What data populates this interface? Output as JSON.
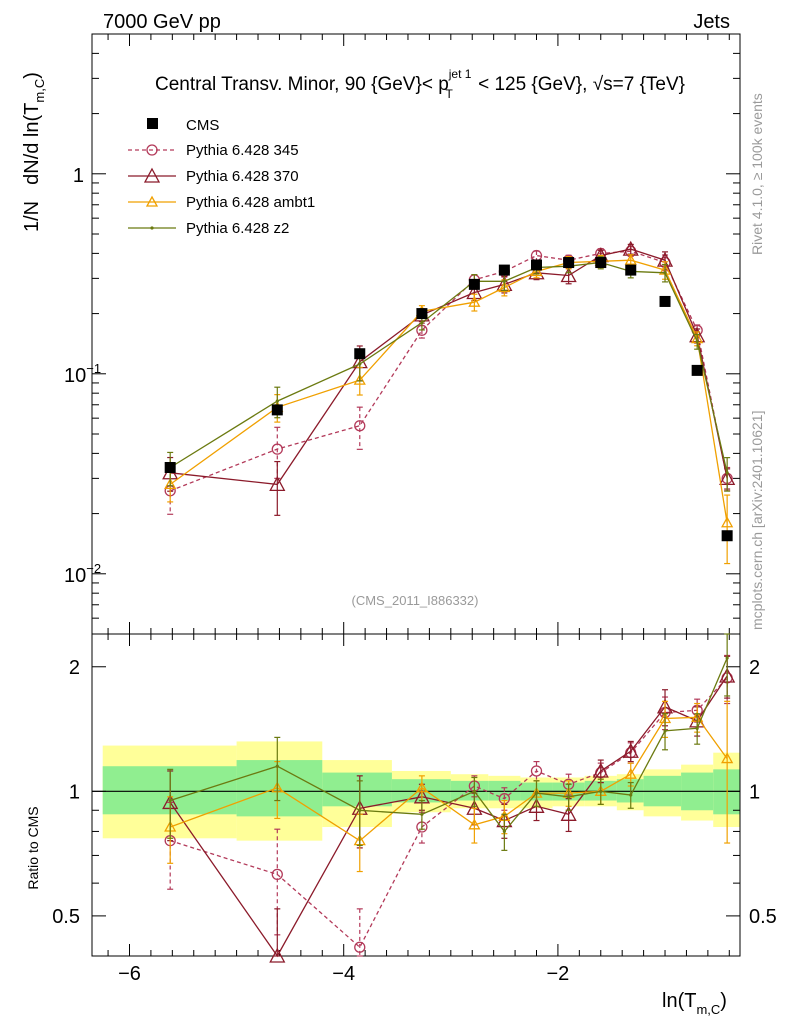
{
  "header": {
    "left": "7000 GeV pp",
    "right": "Jets",
    "title_main": "Central Transv. Minor, 90 {GeV}< p",
    "title_sup": "jet 1",
    "title_sub": "T",
    "title_rest": " < 125 {GeV}, √s=7 {TeV}"
  },
  "side_labels": {
    "rivet": "Rivet 4.1.0, ≥ 100k events",
    "mcplots": "mcplots.cern.ch [arXiv:2401.10621]"
  },
  "watermark": "(CMS_2011_I886332)",
  "ylabel_main": {
    "prefix": "1/N",
    "main": "dN/d ln(T",
    "sub": "m,C",
    "close": ")"
  },
  "ylabel_ratio": "Ratio to CMS",
  "xlabel": {
    "main": "ln(T",
    "sub": "m,C",
    "close": ")"
  },
  "legend": [
    "CMS",
    "Pythia 6.428 345",
    "Pythia 6.428 370",
    "Pythia 6.428 ambt1",
    "Pythia 6.428 z2"
  ],
  "colors": {
    "cms": "#000000",
    "p345": "#b33a5a",
    "p370": "#8b1a2a",
    "ambt1": "#f0a000",
    "z2": "#6b7a10",
    "band_inner": "#90ee90",
    "band_outer": "#ffff99"
  },
  "chart_data": {
    "type": "line",
    "title": "Central Transv. Minor, 90 {GeV}< pT jet 1 < 125 {GeV}, √s=7 {TeV}",
    "xlabel": "ln(T m,C)",
    "ylabel": "1/N dN/d ln(T m,C)",
    "xlim": [
      -6.35,
      -0.3
    ],
    "ylim": [
      0.005,
      5
    ],
    "yscale": "log",
    "ratio_ylim": [
      0.4,
      2.4
    ],
    "x_ticks": [
      -6,
      -4,
      -2
    ],
    "x_tick_labels": [
      "−6",
      "−4",
      "−2"
    ],
    "y_tick_values": [
      0.01,
      0.1,
      1
    ],
    "ratio_tick_values": [
      0.5,
      1,
      2
    ],
    "ratio_tick_labels": [
      "0.5",
      "1",
      "2"
    ],
    "x": [
      -5.62,
      -4.62,
      -3.85,
      -3.27,
      -2.78,
      -2.5,
      -2.2,
      -1.9,
      -1.6,
      -1.32,
      -1.0,
      -0.7,
      -0.42
    ],
    "bin_edges": [
      -6.25,
      -5.0,
      -4.2,
      -3.55,
      -3.0,
      -2.65,
      -2.35,
      -2.05,
      -1.75,
      -1.45,
      -1.2,
      -0.85,
      -0.55,
      -0.3
    ],
    "cms": {
      "name": "CMS",
      "values": [
        0.034,
        0.066,
        0.126,
        0.2,
        0.28,
        0.33,
        0.35,
        0.36,
        0.36,
        0.33,
        0.23,
        0.104,
        0.0155
      ]
    },
    "series": [
      {
        "name": "Pythia 6.428 345",
        "values": [
          0.026,
          0.042,
          0.055,
          0.165,
          0.295,
          0.325,
          0.39,
          0.37,
          0.4,
          0.41,
          0.36,
          0.165,
          0.03
        ],
        "ratio": [
          0.76,
          0.63,
          0.42,
          0.82,
          1.03,
          0.96,
          1.12,
          1.04,
          1.11,
          1.24,
          1.55,
          1.57,
          1.88
        ],
        "ratio_err": [
          0.18,
          0.18,
          0.1,
          0.07,
          0.06,
          0.06,
          0.06,
          0.06,
          0.06,
          0.07,
          0.14,
          0.1,
          0.25
        ]
      },
      {
        "name": "Pythia 6.428 370",
        "values": [
          0.032,
          0.028,
          0.115,
          0.197,
          0.255,
          0.28,
          0.32,
          0.31,
          0.39,
          0.42,
          0.37,
          0.155,
          0.03
        ],
        "ratio": [
          0.94,
          0.4,
          0.91,
          0.97,
          0.91,
          0.85,
          0.92,
          0.88,
          1.12,
          1.25,
          1.6,
          1.48,
          1.9
        ],
        "ratio_err": [
          0.18,
          0.12,
          0.18,
          0.07,
          0.08,
          0.08,
          0.07,
          0.08,
          0.07,
          0.07,
          0.16,
          0.12,
          0.22
        ]
      },
      {
        "name": "Pythia 6.428 ambt1",
        "values": [
          0.028,
          0.068,
          0.093,
          0.205,
          0.228,
          0.27,
          0.325,
          0.36,
          0.365,
          0.37,
          0.33,
          0.15,
          0.018
        ],
        "ratio": [
          0.82,
          1.02,
          0.76,
          1.02,
          0.83,
          0.87,
          0.99,
          0.99,
          1.0,
          1.1,
          1.5,
          1.51,
          1.2
        ],
        "ratio_err": [
          0.15,
          0.16,
          0.12,
          0.07,
          0.08,
          0.08,
          0.07,
          0.07,
          0.07,
          0.07,
          0.15,
          0.12,
          0.45
        ]
      },
      {
        "name": "Pythia 6.428 z2",
        "values": [
          0.034,
          0.073,
          0.112,
          0.18,
          0.29,
          0.29,
          0.34,
          0.345,
          0.36,
          0.325,
          0.32,
          0.145,
          0.032
        ],
        "ratio": [
          0.95,
          1.15,
          0.9,
          0.88,
          1.0,
          0.8,
          0.99,
          0.97,
          1.0,
          0.98,
          1.4,
          1.42,
          2.1
        ],
        "ratio_err": [
          0.18,
          0.2,
          0.16,
          0.07,
          0.08,
          0.08,
          0.07,
          0.07,
          0.07,
          0.07,
          0.14,
          0.12,
          0.4
        ]
      }
    ],
    "band_inner": [
      [
        0.88,
        1.15
      ],
      [
        0.87,
        1.19
      ],
      [
        0.92,
        1.11
      ],
      [
        0.94,
        1.07
      ],
      [
        0.95,
        1.06
      ],
      [
        0.95,
        1.06
      ],
      [
        0.95,
        1.05
      ],
      [
        0.95,
        1.05
      ],
      [
        0.95,
        1.06
      ],
      [
        0.94,
        1.07
      ],
      [
        0.92,
        1.09
      ],
      [
        0.9,
        1.11
      ],
      [
        0.88,
        1.13
      ]
    ],
    "band_outer": [
      [
        0.77,
        1.29
      ],
      [
        0.76,
        1.32
      ],
      [
        0.82,
        1.19
      ],
      [
        0.89,
        1.12
      ],
      [
        0.91,
        1.1
      ],
      [
        0.91,
        1.09
      ],
      [
        0.91,
        1.08
      ],
      [
        0.92,
        1.08
      ],
      [
        0.92,
        1.09
      ],
      [
        0.9,
        1.1
      ],
      [
        0.87,
        1.13
      ],
      [
        0.85,
        1.16
      ],
      [
        0.82,
        1.24
      ]
    ]
  }
}
